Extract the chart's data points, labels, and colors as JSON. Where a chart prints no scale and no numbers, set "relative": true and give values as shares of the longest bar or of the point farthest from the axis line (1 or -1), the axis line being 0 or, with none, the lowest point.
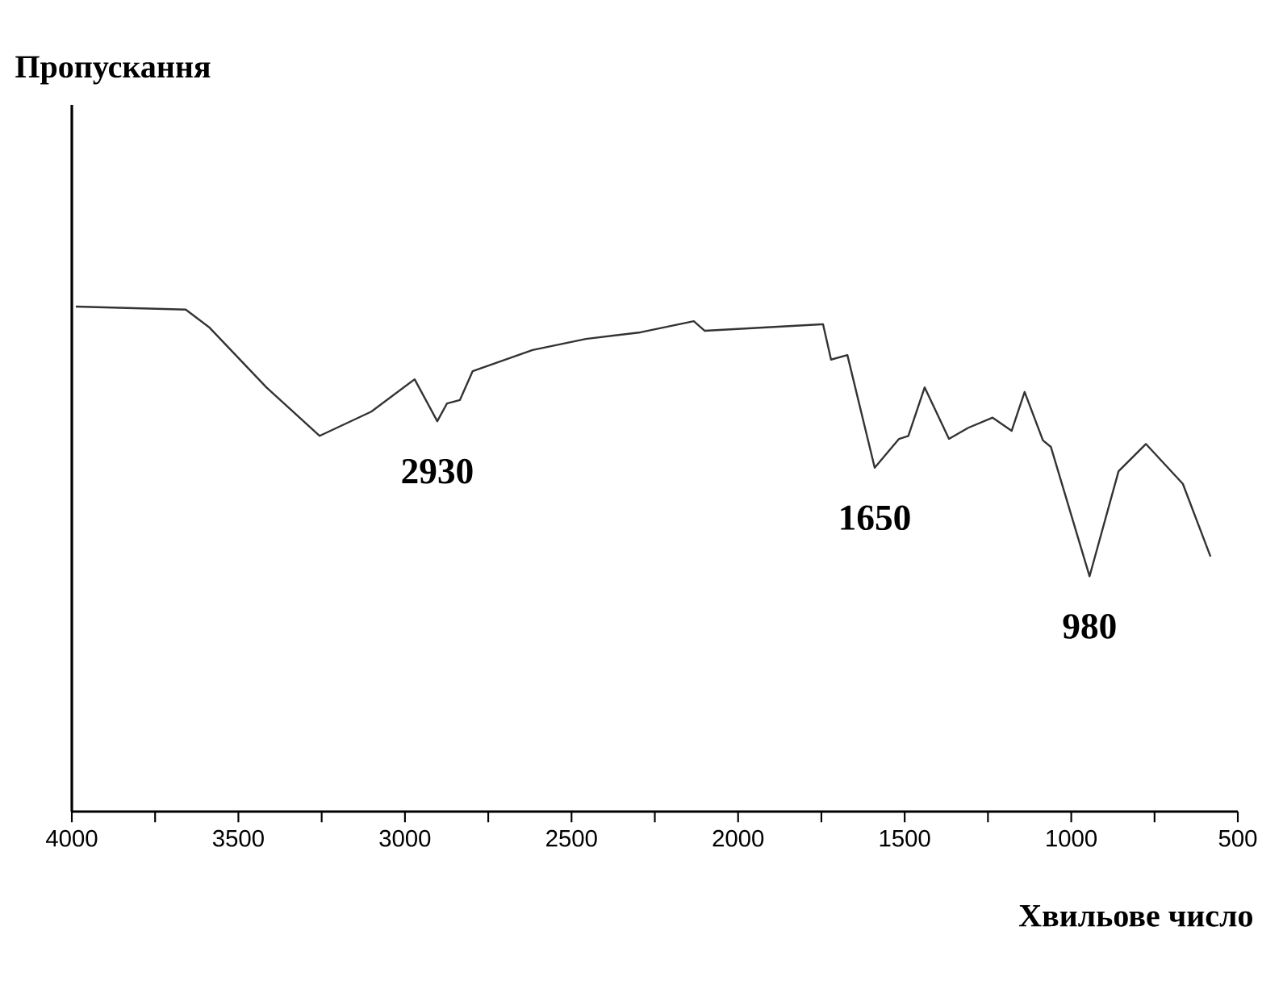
{
  "chart_data": {
    "type": "line",
    "relative": true,
    "xlabel": "Хвильове число",
    "xlim": [
      4000,
      500
    ],
    "xticks": [
      4000,
      {
        "value": 3750,
        "label": null
      },
      3500,
      {
        "value": 3250,
        "label": null
      },
      3000,
      {
        "value": 2750,
        "label": null
      },
      2500,
      {
        "value": 2250,
        "label": null
      },
      2000,
      {
        "value": 1750,
        "label": null
      },
      1500,
      {
        "value": 1250,
        "label": null
      },
      1000,
      {
        "value": 750,
        "label": null
      },
      500
    ],
    "tick_labels": "x",
    "grid": false,
    "marker": "none",
    "line_style": "solid",
    "series": [
      {
        "color": "#333333",
        "x": [
          3988,
          3658,
          3586,
          3416,
          3256,
          3101,
          2971,
          2903,
          2874,
          2835,
          2797,
          2617,
          2457,
          2293,
          2133,
          2100,
          1745,
          1721,
          1672,
          1590,
          1517,
          1489,
          1440,
          1367,
          1309,
          1236,
          1179,
          1140,
          1085,
          1061,
          945,
          858,
          776,
          665,
          582
        ],
        "values": [
          1.0,
          0.994,
          0.958,
          0.84,
          0.744,
          0.792,
          0.856,
          0.773,
          0.808,
          0.815,
          0.872,
          0.914,
          0.936,
          0.949,
          0.971,
          0.952,
          0.965,
          0.895,
          0.904,
          0.681,
          0.738,
          0.744,
          0.84,
          0.738,
          0.76,
          0.78,
          0.754,
          0.831,
          0.735,
          0.722,
          0.466,
          0.674,
          0.728,
          0.649,
          0.505
        ]
      }
    ],
    "annotations": [
      "Пропускання",
      {
        "text": "2930",
        "x": 2903,
        "y": 0.773
      },
      {
        "text": "1650",
        "x": 1590,
        "y": 0.681
      },
      {
        "text": "980",
        "x": 945,
        "y": 0.466
      }
    ]
  }
}
